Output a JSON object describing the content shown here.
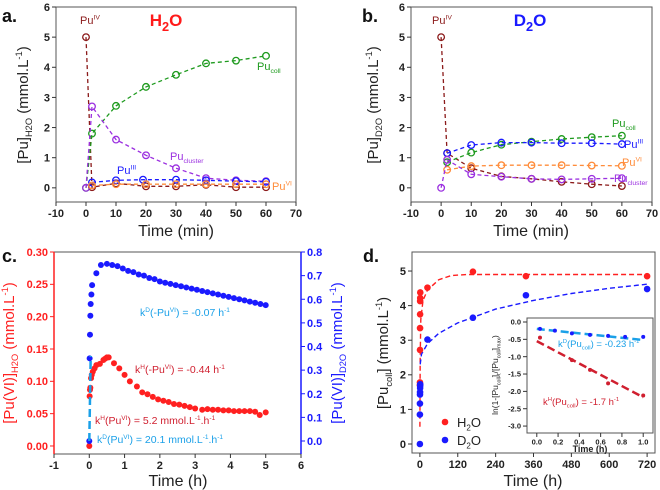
{
  "chart_data": [
    {
      "id": "a",
      "type": "line",
      "panel_label": "a.",
      "title": "H_{2}O",
      "title_color": "#ff1a1a",
      "xlabel": "Time (min)",
      "ylabel": "[Pu]_{H2O} (mmol.L^{-1})",
      "xlim": [
        -10,
        70
      ],
      "ylim": [
        -0.47,
        6
      ],
      "xticks": [
        -10,
        0,
        10,
        20,
        30,
        40,
        50,
        60,
        70
      ],
      "yticks": [
        0,
        1,
        2,
        3,
        4,
        5,
        6
      ],
      "marker": "open-circle",
      "series": [
        {
          "name": "Pu^{IV}",
          "color": "#8b1a1a",
          "x": [
            0,
            2,
            10,
            20,
            30,
            40,
            50,
            60
          ],
          "y": [
            5,
            0.02,
            0.15,
            0.05,
            0.05,
            0.1,
            0.02,
            0.02
          ]
        },
        {
          "name": "Pu_{coll}",
          "color": "#1e9a1e",
          "x": [
            0,
            2,
            10,
            20,
            30,
            40,
            50,
            60
          ],
          "y": [
            0,
            1.8,
            2.72,
            3.35,
            3.75,
            4.13,
            4.22,
            4.38
          ]
        },
        {
          "name": "Pu_{cluster}",
          "color": "#9b30e0",
          "x": [
            0,
            2,
            10,
            20,
            30,
            40,
            50,
            60
          ],
          "y": [
            0,
            2.7,
            1.6,
            1.08,
            0.65,
            0.32,
            0.25,
            0.22
          ]
        },
        {
          "name": "Pu^{III}",
          "color": "#1a1aff",
          "x": [
            2,
            10,
            19,
            30,
            40,
            50,
            60
          ],
          "y": [
            0.18,
            0.25,
            0.27,
            0.27,
            0.25,
            0.22,
            0.2
          ]
        },
        {
          "name": "Pu^{VI}",
          "color": "#ff8c3a",
          "x": [
            2,
            10,
            20,
            30,
            40,
            50,
            60
          ],
          "y": [
            0.08,
            0.12,
            0.12,
            0.12,
            0.12,
            0.12,
            0.12
          ]
        }
      ]
    },
    {
      "id": "b",
      "type": "line",
      "panel_label": "b.",
      "title": "D_{2}O",
      "title_color": "#1a1aff",
      "xlabel": "Time (min)",
      "ylabel": "[Pu]_{D2O} (mmol.L^{-1})",
      "xlim": [
        -10,
        70
      ],
      "ylim": [
        -0.47,
        6
      ],
      "xticks": [
        -10,
        0,
        10,
        20,
        30,
        40,
        50,
        60,
        70
      ],
      "yticks": [
        0,
        1,
        2,
        3,
        4,
        5,
        6
      ],
      "marker": "open-circle",
      "series": [
        {
          "name": "Pu^{IV}",
          "color": "#8b1a1a",
          "x": [
            0,
            2,
            10,
            20,
            30,
            40,
            50,
            60
          ],
          "y": [
            5,
            1.15,
            0.65,
            0.38,
            0.3,
            0.2,
            0.12,
            0.06
          ]
        },
        {
          "name": "Pu_{coll}",
          "color": "#1e9a1e",
          "x": [
            2,
            10,
            20,
            30,
            40,
            50,
            60
          ],
          "y": [
            0.85,
            1.17,
            1.43,
            1.53,
            1.62,
            1.68,
            1.73
          ]
        },
        {
          "name": "Pu^{III}",
          "color": "#1a1aff",
          "x": [
            2,
            10,
            20,
            30,
            40,
            50,
            60
          ],
          "y": [
            1.15,
            1.42,
            1.5,
            1.5,
            1.48,
            1.48,
            1.45
          ]
        },
        {
          "name": "Pu^{VI}",
          "color": "#ff8c3a",
          "x": [
            2,
            10,
            20,
            30,
            40,
            50,
            60
          ],
          "y": [
            0.6,
            0.72,
            0.75,
            0.75,
            0.75,
            0.74,
            0.73
          ]
        },
        {
          "name": "Pu_{cluster}",
          "color": "#9b30e0",
          "x": [
            0,
            2,
            10,
            20,
            30,
            40,
            50,
            60
          ],
          "y": [
            0,
            0.93,
            0.45,
            0.37,
            0.3,
            0.28,
            0.3,
            0.32
          ]
        }
      ]
    },
    {
      "id": "c",
      "type": "scatter",
      "panel_label": "c.",
      "xlabel": "Time (h)",
      "ylabel": "[Pu(VI)]_{H2O} (mmol.L^{-1})",
      "ylabel_right": "[Pu(VI)]_{D2O} (mmol.L^{-1})",
      "xlim": [
        -1,
        6
      ],
      "ylim": [
        -0.0124,
        0.3
      ],
      "ylim_right": [
        -0.055,
        0.8
      ],
      "xticks": [
        -1,
        0,
        1,
        2,
        3,
        4,
        5,
        6
      ],
      "yticks": [
        "0.00",
        "0.05",
        "0.10",
        "0.15",
        "0.20",
        "0.25",
        "0.30"
      ],
      "yticks_right": [
        "0.0",
        "0.1",
        "0.2",
        "0.3",
        "0.4",
        "0.5",
        "0.6",
        "0.7",
        "0.8"
      ],
      "left_color": "#ff2020",
      "right_color": "#1a1aff",
      "series": [
        {
          "name": "H2O",
          "axis": "left",
          "color": "#ff2020",
          "x": [
            0,
            0.01,
            0.02,
            0.03,
            0.05,
            0.07,
            0.1,
            0.15,
            0.2,
            0.3,
            0.4,
            0.45,
            0.5,
            0.55,
            0.7,
            0.85,
            1.0,
            1.15,
            1.35,
            1.5,
            1.65,
            1.8,
            1.95,
            2.1,
            2.25,
            2.4,
            2.55,
            2.7,
            2.85,
            3.0,
            3.2,
            3.35,
            3.5,
            3.65,
            3.8,
            3.95,
            4.1,
            4.25,
            4.4,
            4.55,
            4.7,
            4.83,
            5.0
          ],
          "y": [
            0,
            0.077,
            0.087,
            0.09,
            0.105,
            0.11,
            0.115,
            0.12,
            0.125,
            0.127,
            0.133,
            0.135,
            0.137,
            0.137,
            0.128,
            0.12,
            0.11,
            0.1,
            0.092,
            0.083,
            0.08,
            0.076,
            0.072,
            0.07,
            0.068,
            0.065,
            0.064,
            0.062,
            0.06,
            0.058,
            0.056,
            0.057,
            0.056,
            0.056,
            0.055,
            0.055,
            0.054,
            0.054,
            0.054,
            0.054,
            0.053,
            0.048,
            0.052
          ]
        },
        {
          "name": "D2O",
          "axis": "right",
          "color": "#1a1aff",
          "x": [
            0,
            0.01,
            0.02,
            0.03,
            0.04,
            0.06,
            0.08,
            0.2,
            0.33,
            0.5,
            0.65,
            0.8,
            0.95,
            1.1,
            1.25,
            1.4,
            1.55,
            1.7,
            1.85,
            2.0,
            2.15,
            2.3,
            2.45,
            2.6,
            2.75,
            2.9,
            3.05,
            3.2,
            3.35,
            3.5,
            3.65,
            3.8,
            3.95,
            4.1,
            4.25,
            4.4,
            4.55,
            4.7,
            4.85,
            5.0
          ],
          "y": [
            0,
            0.35,
            0.45,
            0.53,
            0.58,
            0.62,
            0.66,
            0.71,
            0.745,
            0.75,
            0.745,
            0.74,
            0.73,
            0.72,
            0.715,
            0.705,
            0.7,
            0.69,
            0.685,
            0.675,
            0.67,
            0.665,
            0.66,
            0.655,
            0.65,
            0.645,
            0.64,
            0.635,
            0.63,
            0.625,
            0.62,
            0.615,
            0.61,
            0.605,
            0.6,
            0.595,
            0.59,
            0.585,
            0.58,
            0.575
          ]
        }
      ],
      "fits": [
        {
          "name": "kD(PuVI) fit",
          "axis": "right",
          "color": "#1aa0e8",
          "x": [
            0,
            0.04
          ],
          "y": [
            0,
            0.36
          ]
        }
      ],
      "annotations": [
        {
          "text": "k^{D}(-Pu^{VI}) = -0.07 h^{-1}",
          "color": "#1aa0e8"
        },
        {
          "text": "k^{H}(-Pu^{VI}) = -0.44 h^{-1}",
          "color": "#d01f2f"
        },
        {
          "text": "k^{H}(Pu^{VI}) = 5.2 mmol.L^{-1}.h^{-1}",
          "color": "#d01f2f"
        },
        {
          "text": "k^{D}(Pu^{VI}) = 20.1 mmol.L^{-1}.h^{-1}",
          "color": "#1aa0e8"
        }
      ]
    },
    {
      "id": "d",
      "type": "scatter",
      "panel_label": "d.",
      "xlabel": "Time (h)",
      "ylabel": "[Pu_{coll}] (mmol.L^{-1})",
      "xlim": [
        -25,
        745
      ],
      "ylim": [
        -0.26,
        5.55
      ],
      "xticks": [
        0,
        120,
        240,
        360,
        480,
        600,
        720
      ],
      "yticks": [
        0,
        1,
        2,
        3,
        4,
        5
      ],
      "series": [
        {
          "name": "H_{2}O",
          "color": "#ff2020",
          "x": [
            0.03,
            0.17,
            0.33,
            0.5,
            0.67,
            0.83,
            1,
            1.2,
            24,
            168,
            336,
            720
          ],
          "y": [
            1.7,
            1.78,
            2.72,
            3.35,
            3.75,
            4.13,
            4.22,
            4.38,
            4.52,
            4.98,
            4.85,
            4.85
          ]
        },
        {
          "name": "D_{2}O",
          "color": "#1a1aff",
          "x": [
            0,
            0.03,
            0.17,
            0.33,
            0.5,
            0.67,
            0.83,
            1,
            24,
            168,
            336,
            720
          ],
          "y": [
            0,
            0.85,
            1.17,
            1.43,
            1.5,
            1.62,
            1.68,
            1.73,
            3.02,
            3.65,
            4.3,
            4.48
          ]
        }
      ],
      "fits": [
        {
          "name": "H2O fit",
          "color": "#ff2020",
          "x": [
            0,
            1,
            3,
            10,
            24,
            60,
            100,
            150,
            300,
            720
          ],
          "y": [
            0.5,
            2.5,
            3.6,
            4.15,
            4.45,
            4.75,
            4.87,
            4.9,
            4.9,
            4.9
          ]
        },
        {
          "name": "D2O fit",
          "color": "#1a1aff",
          "x": [
            1,
            5,
            24,
            60,
            120,
            240,
            360,
            480,
            600,
            720
          ],
          "y": [
            2.3,
            2.6,
            2.9,
            3.2,
            3.5,
            3.9,
            4.15,
            4.35,
            4.5,
            4.62
          ]
        }
      ],
      "inset": {
        "xlabel": "Time (h)",
        "ylabel": "ln(1-[Pu_{coll}]_{t}/[Pu_{coll}]_{max})",
        "xlim": [
          -0.092,
          1.092
        ],
        "ylim": [
          -3.2,
          0.115
        ],
        "xticks": [
          "0.0",
          "0.2",
          "0.4",
          "0.6",
          "0.8",
          "1.0"
        ],
        "yticks": [
          "0.0",
          "-0.5",
          "-1.0",
          "-1.5",
          "-2.0",
          "-2.5",
          "-3.0"
        ],
        "series": [
          {
            "name": "D2O",
            "color": "#1a1aff",
            "x": [
              0.03,
              0.17,
              0.33,
              0.5,
              0.67,
              0.83,
              1.0
            ],
            "y": [
              -0.2,
              -0.25,
              -0.33,
              -0.37,
              -0.4,
              -0.43,
              -0.43
            ]
          },
          {
            "name": "H2O",
            "color": "#d01f2f",
            "x": [
              0.03,
              0.33,
              0.5,
              0.67,
              1.0
            ],
            "y": [
              -0.45,
              -1.1,
              -1.38,
              -1.77,
              -2.12
            ]
          }
        ],
        "fits": [
          {
            "name": "kD fit",
            "color": "#1aa0e8",
            "x": [
              0,
              1
            ],
            "y": [
              -0.2,
              -0.52
            ]
          },
          {
            "name": "kH fit",
            "color": "#d01f2f",
            "x": [
              0,
              1
            ],
            "y": [
              -0.55,
              -2.17
            ]
          }
        ],
        "annotations": [
          {
            "text": "k^{D}(Pu_{coll}) = -0.23 h^{-1}",
            "color": "#1aa0e8"
          },
          {
            "text": "k^{H}(Pu_{coll}) = -1.7 h^{-1}",
            "color": "#d01f2f"
          }
        ]
      }
    }
  ]
}
